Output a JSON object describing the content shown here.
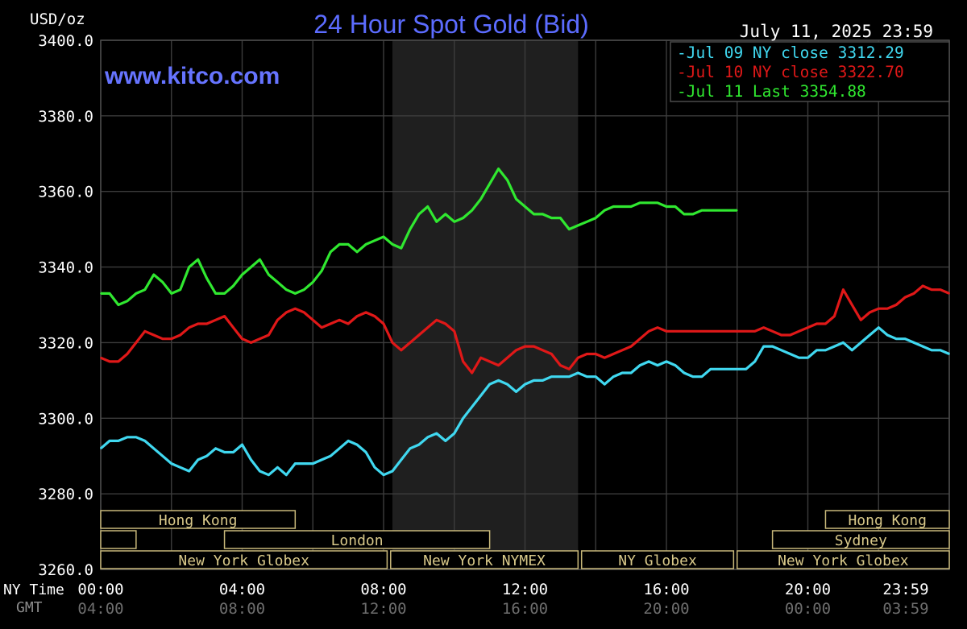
{
  "chart_data": {
    "type": "line",
    "title": "24 Hour Spot Gold (Bid)",
    "watermark": "www.kitco.com",
    "unit_label": "USD/oz",
    "timestamp": "July 11, 2025 23:59",
    "ylim": [
      3260,
      3400
    ],
    "yticks": [
      "3400.0",
      "3380.0",
      "3360.0",
      "3340.0",
      "3320.0",
      "3300.0",
      "3280.0",
      "3260.0"
    ],
    "x_row_labels": [
      "NY Time",
      "GMT"
    ],
    "xticks_ny": [
      "00:00",
      "04:00",
      "08:00",
      "12:00",
      "16:00",
      "20:00",
      "23:59"
    ],
    "xticks_gmt": [
      "04:00",
      "08:00",
      "12:00",
      "16:00",
      "20:00",
      "00:00",
      "03:59"
    ],
    "shaded_session": [
      8.25,
      13.5
    ],
    "grid": true,
    "legend_position": "top-right",
    "legend": [
      {
        "label": "Jul 09 NY close 3312.29",
        "color": "#40d8f0"
      },
      {
        "label": "Jul 10 NY close 3322.70",
        "color": "#e01818"
      },
      {
        "label": "Jul 11 Last 3354.88",
        "color": "#30e830"
      }
    ],
    "sessions": [
      {
        "label": "Hong Kong",
        "start": 0,
        "end": 5.5,
        "row": 0
      },
      {
        "label": "",
        "start": 0,
        "end": 1,
        "row": 1
      },
      {
        "label": "London",
        "start": 3.5,
        "end": 11,
        "row": 1
      },
      {
        "label": "New York Globex",
        "start": 0,
        "end": 8.1,
        "row": 2
      },
      {
        "label": "New York NYMEX",
        "start": 8.2,
        "end": 13.5,
        "row": 2
      },
      {
        "label": "NY Globex",
        "start": 13.6,
        "end": 17.9,
        "row": 2
      },
      {
        "label": "Hong Kong",
        "start": 20.5,
        "end": 24,
        "row": 0
      },
      {
        "label": "Sydney",
        "start": 19,
        "end": 24,
        "row": 1
      },
      {
        "label": "New York Globex",
        "start": 18,
        "end": 24,
        "row": 2
      }
    ],
    "series": [
      {
        "name": "Jul 09",
        "color": "#40d8f0",
        "x": [
          0,
          0.25,
          0.5,
          0.75,
          1,
          1.25,
          1.5,
          1.75,
          2,
          2.25,
          2.5,
          2.75,
          3,
          3.25,
          3.5,
          3.75,
          4,
          4.25,
          4.5,
          4.75,
          5,
          5.25,
          5.5,
          5.75,
          6,
          6.25,
          6.5,
          6.75,
          7,
          7.25,
          7.5,
          7.75,
          8,
          8.25,
          8.5,
          8.75,
          9,
          9.25,
          9.5,
          9.75,
          10,
          10.25,
          10.5,
          10.75,
          11,
          11.25,
          11.5,
          11.75,
          12,
          12.25,
          12.5,
          12.75,
          13,
          13.25,
          13.5,
          13.75,
          14,
          14.25,
          14.5,
          14.75,
          15,
          15.25,
          15.5,
          15.75,
          16,
          16.25,
          16.5,
          16.75,
          17,
          17.25,
          17.5,
          17.75,
          18,
          18.25,
          18.5,
          18.75,
          19,
          19.25,
          19.5,
          19.75,
          20,
          20.25,
          20.5,
          20.75,
          21,
          21.25,
          21.5,
          21.75,
          22,
          22.25,
          22.5,
          22.75,
          23,
          23.25,
          23.5,
          23.75,
          24
        ],
        "y": [
          3292,
          3294,
          3294,
          3295,
          3295,
          3294,
          3292,
          3290,
          3288,
          3287,
          3286,
          3289,
          3290,
          3292,
          3291,
          3291,
          3293,
          3289,
          3286,
          3285,
          3287,
          3285,
          3288,
          3288,
          3288,
          3289,
          3290,
          3292,
          3294,
          3293,
          3291,
          3287,
          3285,
          3286,
          3289,
          3292,
          3293,
          3295,
          3296,
          3294,
          3296,
          3300,
          3303,
          3306,
          3309,
          3310,
          3309,
          3307,
          3309,
          3310,
          3310,
          3311,
          3311,
          3311,
          3312,
          3311,
          3311,
          3309,
          3311,
          3312,
          3312,
          3314,
          3315,
          3314,
          3315,
          3314,
          3312,
          3311,
          3311,
          3313,
          3313,
          3313,
          3313,
          3313,
          3315,
          3319,
          3319,
          3318,
          3317,
          3316,
          3316,
          3318,
          3318,
          3319,
          3320,
          3318,
          3320,
          3322,
          3324,
          3322,
          3321,
          3321,
          3320,
          3319,
          3318,
          3318,
          3317
        ]
      },
      {
        "name": "Jul 10",
        "color": "#e01818",
        "x": [
          0,
          0.25,
          0.5,
          0.75,
          1,
          1.25,
          1.5,
          1.75,
          2,
          2.25,
          2.5,
          2.75,
          3,
          3.25,
          3.5,
          3.75,
          4,
          4.25,
          4.5,
          4.75,
          5,
          5.25,
          5.5,
          5.75,
          6,
          6.25,
          6.5,
          6.75,
          7,
          7.25,
          7.5,
          7.75,
          8,
          8.25,
          8.5,
          8.75,
          9,
          9.25,
          9.5,
          9.75,
          10,
          10.25,
          10.5,
          10.75,
          11,
          11.25,
          11.5,
          11.75,
          12,
          12.25,
          12.5,
          12.75,
          13,
          13.25,
          13.5,
          13.75,
          14,
          14.25,
          14.5,
          14.75,
          15,
          15.25,
          15.5,
          15.75,
          16,
          16.25,
          16.5,
          16.75,
          17,
          17.25,
          17.5,
          17.75,
          18,
          18.25,
          18.5,
          18.75,
          19,
          19.25,
          19.5,
          19.75,
          20,
          20.25,
          20.5,
          20.75,
          21,
          21.25,
          21.5,
          21.75,
          22,
          22.25,
          22.5,
          22.75,
          23,
          23.25,
          23.5,
          23.75,
          24
        ],
        "y": [
          3316,
          3315,
          3315,
          3317,
          3320,
          3323,
          3322,
          3321,
          3321,
          3322,
          3324,
          3325,
          3325,
          3326,
          3327,
          3324,
          3321,
          3320,
          3321,
          3322,
          3326,
          3328,
          3329,
          3328,
          3326,
          3324,
          3325,
          3326,
          3325,
          3327,
          3328,
          3327,
          3325,
          3320,
          3318,
          3320,
          3322,
          3324,
          3326,
          3325,
          3323,
          3315,
          3312,
          3316,
          3315,
          3314,
          3316,
          3318,
          3319,
          3319,
          3318,
          3317,
          3314,
          3313,
          3316,
          3317,
          3317,
          3316,
          3317,
          3318,
          3319,
          3321,
          3323,
          3324,
          3323,
          3323,
          3323,
          3323,
          3323,
          3323,
          3323,
          3323,
          3323,
          3323,
          3323,
          3324,
          3323,
          3322,
          3322,
          3323,
          3324,
          3325,
          3325,
          3327,
          3334,
          3330,
          3326,
          3328,
          3329,
          3329,
          3330,
          3332,
          3333,
          3335,
          3334,
          3334,
          3333
        ]
      },
      {
        "name": "Jul 11",
        "color": "#30e830",
        "x": [
          0,
          0.25,
          0.5,
          0.75,
          1,
          1.25,
          1.5,
          1.75,
          2,
          2.25,
          2.5,
          2.75,
          3,
          3.25,
          3.5,
          3.75,
          4,
          4.25,
          4.5,
          4.75,
          5,
          5.25,
          5.5,
          5.75,
          6,
          6.25,
          6.5,
          6.75,
          7,
          7.25,
          7.5,
          7.75,
          8,
          8.25,
          8.5,
          8.75,
          9,
          9.25,
          9.5,
          9.75,
          10,
          10.25,
          10.5,
          10.75,
          11,
          11.25,
          11.5,
          11.75,
          12,
          12.25,
          12.5,
          12.75,
          13,
          13.25,
          13.5,
          13.75,
          14,
          14.25,
          14.5,
          14.75,
          15,
          15.25,
          15.5,
          15.75,
          16,
          16.25,
          16.5,
          16.75,
          17,
          17.25,
          17.5,
          17.75,
          18
        ],
        "y": [
          3333,
          3333,
          3330,
          3331,
          3333,
          3334,
          3338,
          3336,
          3333,
          3334,
          3340,
          3342,
          3337,
          3333,
          3333,
          3335,
          3338,
          3340,
          3342,
          3338,
          3336,
          3334,
          3333,
          3334,
          3336,
          3339,
          3344,
          3346,
          3346,
          3344,
          3346,
          3347,
          3348,
          3346,
          3345,
          3350,
          3354,
          3356,
          3352,
          3354,
          3352,
          3353,
          3355,
          3358,
          3362,
          3366,
          3363,
          3358,
          3356,
          3354,
          3354,
          3353,
          3353,
          3350,
          3351,
          3352,
          3353,
          3355,
          3356,
          3356,
          3356,
          3357,
          3357,
          3357,
          3356,
          3356,
          3354,
          3354,
          3355,
          3355,
          3355,
          3355,
          3355
        ]
      }
    ]
  }
}
